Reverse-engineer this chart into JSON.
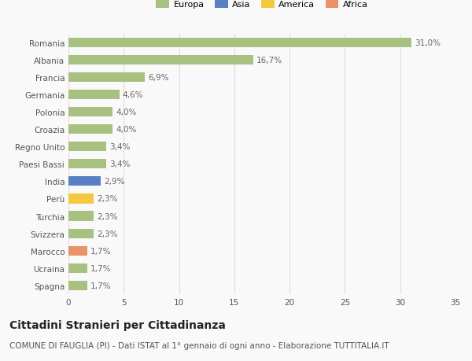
{
  "categories": [
    "Romania",
    "Albania",
    "Francia",
    "Germania",
    "Polonia",
    "Croazia",
    "Regno Unito",
    "Paesi Bassi",
    "India",
    "Perù",
    "Turchia",
    "Svizzera",
    "Marocco",
    "Ucraina",
    "Spagna"
  ],
  "values": [
    31.0,
    16.7,
    6.9,
    4.6,
    4.0,
    4.0,
    3.4,
    3.4,
    2.9,
    2.3,
    2.3,
    2.3,
    1.7,
    1.7,
    1.7
  ],
  "labels": [
    "31,0%",
    "16,7%",
    "6,9%",
    "4,6%",
    "4,0%",
    "4,0%",
    "3,4%",
    "3,4%",
    "2,9%",
    "2,3%",
    "2,3%",
    "2,3%",
    "1,7%",
    "1,7%",
    "1,7%"
  ],
  "continents": [
    "Europa",
    "Europa",
    "Europa",
    "Europa",
    "Europa",
    "Europa",
    "Europa",
    "Europa",
    "Asia",
    "America",
    "Europa",
    "Europa",
    "Africa",
    "Europa",
    "Europa"
  ],
  "colors": {
    "Europa": "#a8c080",
    "Asia": "#5b7fc5",
    "America": "#f5c842",
    "Africa": "#e8936a"
  },
  "xlim": [
    0,
    35
  ],
  "xticks": [
    0,
    5,
    10,
    15,
    20,
    25,
    30,
    35
  ],
  "title": "Cittadini Stranieri per Cittadinanza",
  "subtitle": "COMUNE DI FAUGLIA (PI) - Dati ISTAT al 1° gennaio di ogni anno - Elaborazione TUTTITALIA.IT",
  "background_color": "#f9f9f9",
  "grid_color": "#dddddd",
  "bar_height": 0.55,
  "label_fontsize": 7.5,
  "tick_fontsize": 7.5,
  "title_fontsize": 10,
  "subtitle_fontsize": 7.5,
  "legend_entries": [
    "Europa",
    "Asia",
    "America",
    "Africa"
  ]
}
